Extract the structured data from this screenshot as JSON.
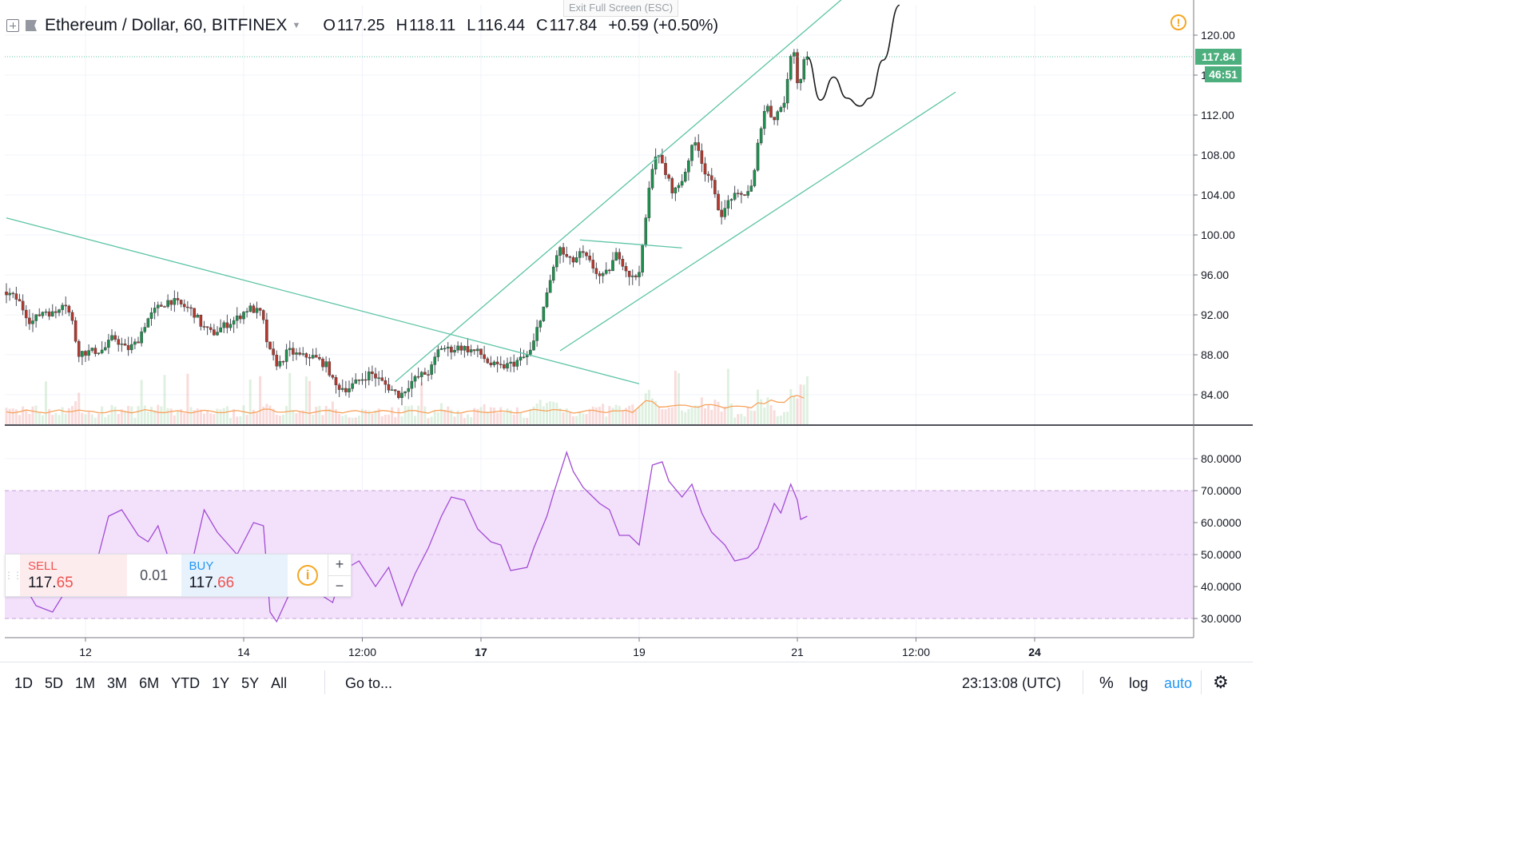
{
  "header": {
    "symbol": "Ethereum / Dollar, 60, BITFINEX",
    "open_label": "O",
    "open": "117.25",
    "high_label": "H",
    "high": "118.11",
    "low_label": "L",
    "low": "116.44",
    "close_label": "C",
    "close": "117.84",
    "change": "+0.59 (+0.50%)"
  },
  "exit_fullscreen": "Exit Full Screen (ESC)",
  "price_badges": {
    "last_price": "117.84",
    "countdown": "46:51"
  },
  "trade_panel": {
    "sell_label": "SELL",
    "sell_price_main": "117.",
    "sell_price_hl": "65",
    "spread": "0.01",
    "buy_label": "BUY",
    "buy_price_main": "117.",
    "buy_price_hl": "66",
    "plus": "+",
    "minus": "−"
  },
  "bottom_bar": {
    "ranges": [
      "1D",
      "5D",
      "1M",
      "3M",
      "6M",
      "YTD",
      "1Y",
      "5Y",
      "All"
    ],
    "goto": "Go to...",
    "clock": "23:13:08 (UTC)",
    "percent": "%",
    "log": "log",
    "auto": "auto"
  },
  "colors": {
    "up": "#26a69a",
    "down": "#ef5350",
    "candle_up_fill": "#1e8f4e",
    "candle_down_fill": "#b2382e",
    "trendline": "#5ec4a6",
    "rsi": "#a24bd4",
    "rsi_band": "#f3e1fb",
    "ma": "#f7a25b",
    "alert": "#f5a623"
  },
  "chart_data": [
    {
      "type": "candlestick",
      "title": "",
      "price_axis": {
        "ticks": [
          "120.00",
          "116.00",
          "112.00",
          "108.00",
          "104.00",
          "100.00",
          "96.00",
          "92.00",
          "88.00",
          "84.00"
        ],
        "range": [
          80.8,
          123.0
        ]
      },
      "time_axis": {
        "labels": [
          "12",
          "14",
          "12:00",
          "17",
          "19",
          "21",
          "12:00",
          "24"
        ],
        "positions_hours": [
          24,
          72,
          108,
          144,
          192,
          240,
          276,
          312
        ]
      },
      "last_price": 117.84,
      "price_path_hourly": [
        [
          0,
          94.3
        ],
        [
          4,
          93.5
        ],
        [
          8,
          91.2
        ],
        [
          12,
          92.5
        ],
        [
          15,
          92.0
        ],
        [
          18,
          93.6
        ],
        [
          21,
          90.8
        ],
        [
          22,
          88.2
        ],
        [
          26,
          88.3
        ],
        [
          30,
          88.5
        ],
        [
          33,
          89.8
        ],
        [
          37,
          88.5
        ],
        [
          40,
          89.2
        ],
        [
          43,
          91.4
        ],
        [
          46,
          92.6
        ],
        [
          50,
          93.5
        ],
        [
          54,
          92.9
        ],
        [
          57,
          92.4
        ],
        [
          60,
          90.8
        ],
        [
          63,
          90.1
        ],
        [
          67,
          91.0
        ],
        [
          70,
          91.5
        ],
        [
          74,
          92.7
        ],
        [
          78,
          92.1
        ],
        [
          80,
          88.5
        ],
        [
          83,
          86.9
        ],
        [
          86,
          88.4
        ],
        [
          90,
          87.8
        ],
        [
          93,
          87.9
        ],
        [
          96,
          87.3
        ],
        [
          98,
          86.8
        ],
        [
          100,
          84.9
        ],
        [
          104,
          84.6
        ],
        [
          107,
          85.3
        ],
        [
          111,
          86.2
        ],
        [
          114,
          85.4
        ],
        [
          117,
          84.6
        ],
        [
          120,
          83.9
        ],
        [
          123,
          85.2
        ],
        [
          126,
          85.9
        ],
        [
          129,
          86.3
        ],
        [
          132,
          88.8
        ],
        [
          135,
          88.5
        ],
        [
          138,
          88.8
        ],
        [
          141,
          88.5
        ],
        [
          144,
          88.2
        ],
        [
          147,
          87.1
        ],
        [
          150,
          86.7
        ],
        [
          154,
          87.1
        ],
        [
          158,
          87.8
        ],
        [
          160,
          88.5
        ],
        [
          162,
          91.3
        ],
        [
          164,
          93.2
        ],
        [
          166,
          96.1
        ],
        [
          168,
          98.7
        ],
        [
          170,
          97.9
        ],
        [
          172,
          97.2
        ],
        [
          175,
          98.2
        ],
        [
          178,
          97.0
        ],
        [
          181,
          95.6
        ],
        [
          183,
          96.3
        ],
        [
          186,
          98.3
        ],
        [
          189,
          96.2
        ],
        [
          191,
          95.5
        ],
        [
          193,
          97.0
        ],
        [
          195,
          103.2
        ],
        [
          197,
          108.2
        ],
        [
          199,
          107.5
        ],
        [
          201,
          105.7
        ],
        [
          203,
          104.2
        ],
        [
          206,
          105.8
        ],
        [
          208,
          108.3
        ],
        [
          210,
          109.5
        ],
        [
          212,
          106.6
        ],
        [
          214,
          105.8
        ],
        [
          216,
          103.1
        ],
        [
          218,
          101.9
        ],
        [
          220,
          103.8
        ],
        [
          223,
          103.8
        ],
        [
          225,
          104.3
        ],
        [
          227,
          104.9
        ],
        [
          229,
          110.3
        ],
        [
          231,
          113.2
        ],
        [
          233,
          111.6
        ],
        [
          235,
          112.5
        ],
        [
          237,
          113.8
        ],
        [
          239,
          119.6
        ],
        [
          240,
          117.4
        ],
        [
          241,
          113.5
        ],
        [
          242,
          117.6
        ],
        [
          243,
          117.84
        ]
      ],
      "projection_path_hourly": [
        [
          243,
          117.84
        ],
        [
          247,
          113.5
        ],
        [
          251,
          115.8
        ],
        [
          255,
          113.7
        ],
        [
          259,
          112.9
        ],
        [
          262,
          113.7
        ],
        [
          266,
          117.5
        ],
        [
          271,
          123.0
        ]
      ],
      "channel_upper": [
        [
          118,
          85.3
        ],
        [
          256,
          124.3
        ]
      ],
      "channel_lower": [
        [
          168,
          88.4
        ],
        [
          288,
          114.3
        ]
      ],
      "descending_trendline": [
        [
          0,
          101.7
        ],
        [
          192,
          85.1
        ]
      ],
      "triangle_line": [
        [
          174,
          99.5
        ],
        [
          205,
          98.7
        ]
      ],
      "volume_ma_level_price": 83.3
    },
    {
      "type": "line",
      "title": "",
      "indicator": "RSI",
      "y_axis": {
        "ticks": [
          "80.0000",
          "70.0000",
          "60.0000",
          "50.0000",
          "40.0000",
          "30.0000"
        ],
        "range": [
          24.0,
          89.5
        ]
      },
      "band": [
        30,
        70
      ],
      "values": [
        [
          0,
          50
        ],
        [
          9,
          34
        ],
        [
          14,
          32
        ],
        [
          20,
          42
        ],
        [
          27,
          46
        ],
        [
          31,
          62
        ],
        [
          35,
          64
        ],
        [
          40,
          56
        ],
        [
          43,
          54
        ],
        [
          46,
          59
        ],
        [
          52,
          40
        ],
        [
          56,
          46
        ],
        [
          60,
          64
        ],
        [
          64,
          57
        ],
        [
          70,
          50
        ],
        [
          75,
          60
        ],
        [
          78,
          59
        ],
        [
          80,
          32
        ],
        [
          82,
          29
        ],
        [
          86,
          38
        ],
        [
          88,
          40
        ],
        [
          91,
          39
        ],
        [
          96,
          37
        ],
        [
          99,
          35
        ],
        [
          102,
          45
        ],
        [
          107,
          48
        ],
        [
          112,
          40
        ],
        [
          116,
          46
        ],
        [
          120,
          34
        ],
        [
          124,
          44
        ],
        [
          128,
          52
        ],
        [
          132,
          62
        ],
        [
          135,
          68
        ],
        [
          139,
          67
        ],
        [
          143,
          58
        ],
        [
          147,
          54
        ],
        [
          150,
          53
        ],
        [
          153,
          45
        ],
        [
          158,
          46
        ],
        [
          160,
          52
        ],
        [
          164,
          62
        ],
        [
          166,
          69
        ],
        [
          170,
          82
        ],
        [
          172,
          76
        ],
        [
          175,
          71
        ],
        [
          180,
          66
        ],
        [
          183,
          64
        ],
        [
          186,
          56
        ],
        [
          189,
          56
        ],
        [
          192,
          53
        ],
        [
          196,
          78
        ],
        [
          199,
          79
        ],
        [
          201,
          73
        ],
        [
          205,
          68
        ],
        [
          208,
          72
        ],
        [
          211,
          63
        ],
        [
          214,
          57
        ],
        [
          218,
          53
        ],
        [
          221,
          48
        ],
        [
          225,
          49
        ],
        [
          228,
          52
        ],
        [
          231,
          60
        ],
        [
          233,
          66
        ],
        [
          235,
          63
        ],
        [
          238,
          72
        ],
        [
          240,
          67
        ],
        [
          241,
          61
        ],
        [
          243,
          62
        ]
      ]
    }
  ]
}
